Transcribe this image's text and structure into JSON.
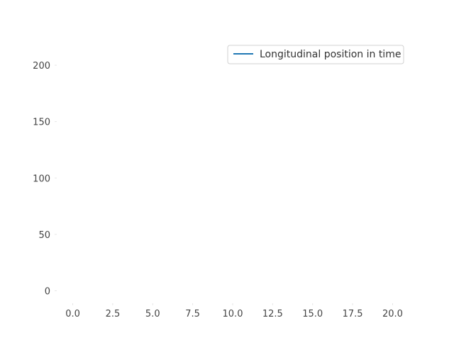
{
  "chart_data": {
    "type": "line",
    "title": "",
    "xlabel": "",
    "ylabel": "",
    "xlim": [
      -1.0,
      21.0
    ],
    "ylim": [
      -11.0,
      222.0
    ],
    "xticks": [
      "0.0",
      "2.5",
      "5.0",
      "7.5",
      "10.0",
      "12.5",
      "15.0",
      "17.5",
      "20.0"
    ],
    "xtick_values": [
      0.0,
      2.5,
      5.0,
      7.5,
      10.0,
      12.5,
      15.0,
      17.5,
      20.0
    ],
    "yticks": [
      "0",
      "50",
      "100",
      "150",
      "200"
    ],
    "ytick_values": [
      0,
      50,
      100,
      150,
      200
    ],
    "grid": false,
    "legend_position": "top-right",
    "series": [
      {
        "name": "Longitudinal position in time",
        "color": "#1f77b4",
        "x": [],
        "y": []
      }
    ]
  }
}
